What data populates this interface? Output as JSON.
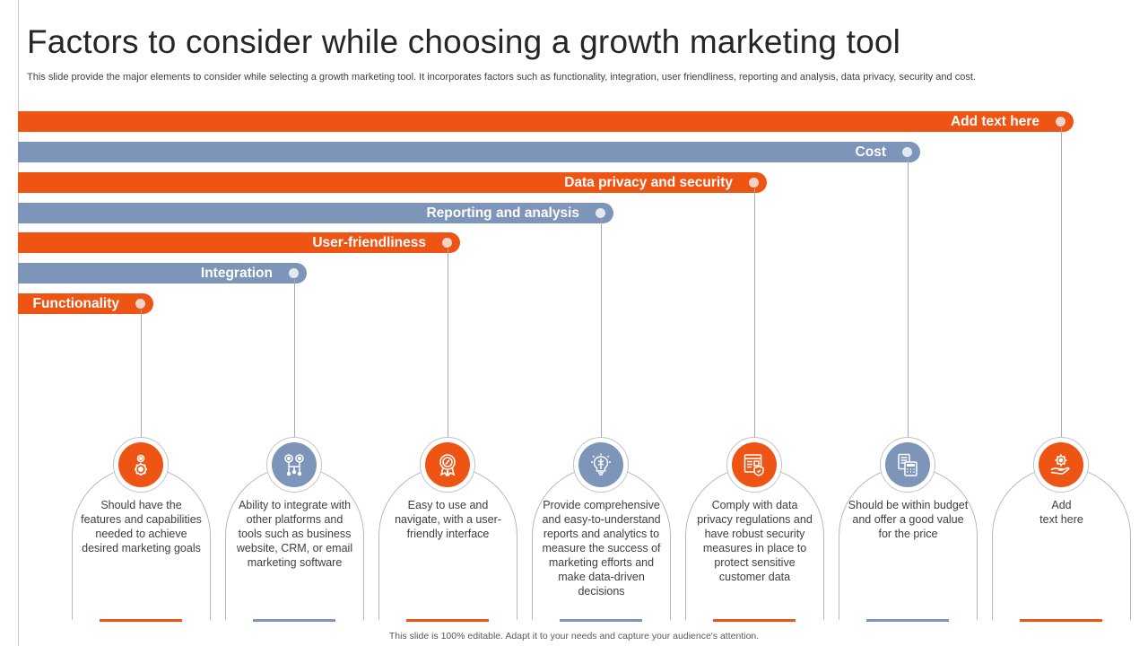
{
  "slide": {
    "title": "Factors to consider while choosing a growth marketing tool",
    "description": "This slide provide the major elements to consider while selecting a growth marketing tool. It incorporates factors such as functionality, integration, user friendliness, reporting and analysis, data privacy,  security and cost.",
    "footer": "This slide is 100% editable. Adapt it to your needs and capture your audience's attention."
  },
  "colors": {
    "orange": "#ee5413",
    "blue": "#7c95b8"
  },
  "factors": [
    {
      "label": "Add text here",
      "color": "orange",
      "icon": "hand-gear-icon",
      "description": "Add\ntext here"
    },
    {
      "label": "Cost",
      "color": "blue",
      "icon": "calculator-document-icon",
      "description": "Should be within budget and offer a good value for the price"
    },
    {
      "label": "Data privacy and security",
      "color": "orange",
      "icon": "secure-document-icon",
      "description": "Comply with data privacy regulations and have robust security measures in place to protect sensitive customer data"
    },
    {
      "label": "Reporting and analysis",
      "color": "blue",
      "icon": "brain-bulb-icon",
      "description": "Provide comprehensive  and easy-to-understand reports and analytics to measure the success of marketing efforts and make data-driven  decisions"
    },
    {
      "label": "User-friendliness",
      "color": "orange",
      "icon": "badge-icon",
      "description": "Easy to use and navigate,  with a user-friendly interface"
    },
    {
      "label": "Integration",
      "color": "blue",
      "icon": "network-gears-icon",
      "description": "Ability to integrate with other platforms and tools such as business website, CRM, or email marketing software"
    },
    {
      "label": "Functionality",
      "color": "orange",
      "icon": "gears-icon",
      "description": "Should have the features and capabilities needed to achieve desired marketing goals"
    }
  ]
}
